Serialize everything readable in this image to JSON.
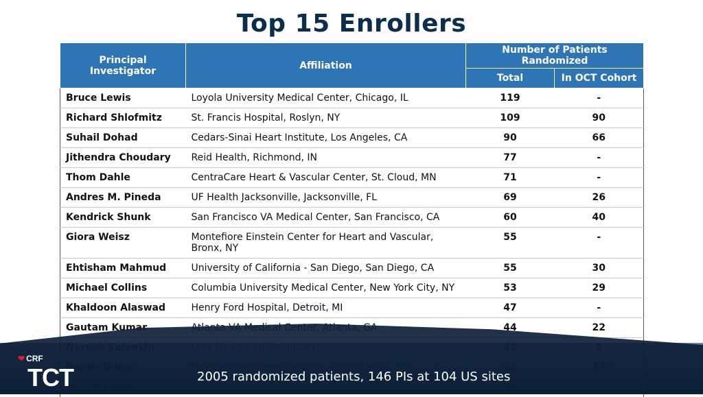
{
  "title": "Top 15 Enrollers",
  "table": {
    "headers": {
      "pi": "Principal Investigator",
      "affiliation": "Affiliation",
      "group": "Number of Patients Randomized",
      "total": "Total",
      "oct": "In OCT Cohort"
    },
    "rows": [
      {
        "pi": "Bruce Lewis",
        "affiliation": "Loyola University Medical Center, Chicago, IL",
        "total": "119",
        "oct": "-"
      },
      {
        "pi": "Richard Shlofmitz",
        "affiliation": "St. Francis Hospital, Roslyn, NY",
        "total": "109",
        "oct": "90"
      },
      {
        "pi": "Suhail Dohad",
        "affiliation": "Cedars-Sinai Heart Institute, Los Angeles, CA",
        "total": "90",
        "oct": "66"
      },
      {
        "pi": "Jithendra Choudary",
        "affiliation": "Reid Health, Richmond, IN",
        "total": "77",
        "oct": "-"
      },
      {
        "pi": "Thom Dahle",
        "affiliation": "CentraCare Heart & Vascular Center, St. Cloud, MN",
        "total": "71",
        "oct": "-"
      },
      {
        "pi": "Andres M. Pineda",
        "affiliation": "UF Health Jacksonville, Jacksonville, FL",
        "total": "69",
        "oct": "26"
      },
      {
        "pi": "Kendrick Shunk",
        "affiliation": "San Francisco VA Medical Center, San Francisco, CA",
        "total": "60",
        "oct": "40"
      },
      {
        "pi": "Giora Weisz",
        "affiliation": "Montefiore Einstein Center for Heart and Vascular, Bronx, NY",
        "total": "55",
        "oct": "-"
      },
      {
        "pi": "Ehtisham Mahmud",
        "affiliation": "University of California - San Diego, San Diego, CA",
        "total": "55",
        "oct": "30"
      },
      {
        "pi": "Michael Collins",
        "affiliation": "Columbia University Medical Center, New York City, NY",
        "total": "53",
        "oct": "29"
      },
      {
        "pi": "Khaldoon Alaswad",
        "affiliation": "Henry Ford Hospital, Detroit, MI",
        "total": "47",
        "oct": "-"
      },
      {
        "pi": "Gautam Kumar",
        "affiliation": "Atlanta VA Medical Center, Atlanta, GA",
        "total": "44",
        "oct": "22"
      },
      {
        "pi": "Naresh Solankhi",
        "affiliation": "UofL Health, Louisville, KY",
        "total": "42",
        "oct": "8"
      },
      {
        "pi": "Daniel Dulas",
        "affiliation": "Metropolitan Heart Institute, Coon Rapids, MN",
        "total": "41",
        "oct": "33"
      },
      {
        "pi": "John Altman",
        "affiliation": "",
        "total": "40",
        "oct": "-"
      }
    ]
  },
  "caption": "2005 randomized patients, 146 PIs at 104 US sites",
  "logo": {
    "crf": "CRF",
    "tct": "TCT"
  },
  "colors": {
    "title": "#0b2e4f",
    "header": "#2e75b6",
    "footer": "#0d1f38"
  }
}
